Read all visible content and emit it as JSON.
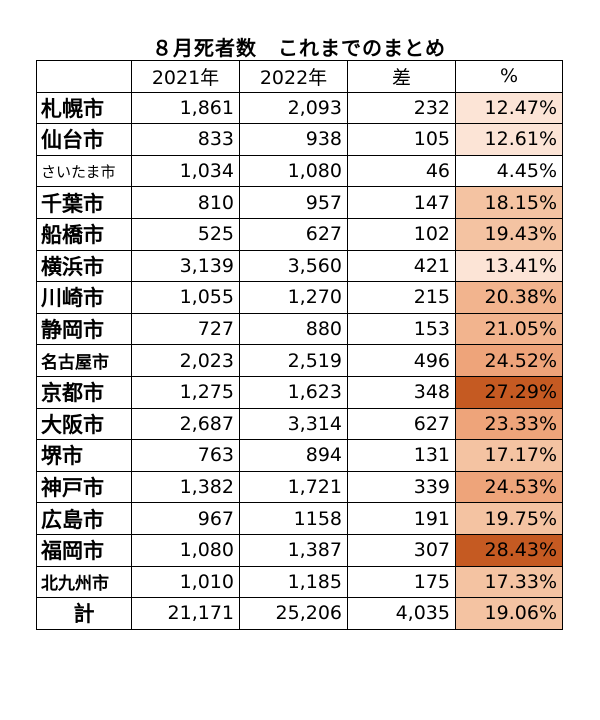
{
  "title": "８月死者数　これまでのまとめ",
  "headers": [
    "",
    "2021年",
    "2022年",
    "差",
    "%"
  ],
  "rows": [
    {
      "city": "札幌市",
      "y2021": "1,861",
      "y2022": "2,093",
      "diff": "232",
      "pct": "12.47%",
      "color": "#fce4d6"
    },
    {
      "city": "仙台市",
      "y2021": "833",
      "y2022": "938",
      "diff": "105",
      "pct": "12.61%",
      "color": "#fce4d6"
    },
    {
      "city": "さいたま市",
      "y2021": "1,034",
      "y2022": "1,080",
      "diff": "46",
      "pct": "4.45%",
      "color": "#ffffff"
    },
    {
      "city": "千葉市",
      "y2021": "810",
      "y2022": "957",
      "diff": "147",
      "pct": "18.15%",
      "color": "#f4c3a2"
    },
    {
      "city": "船橋市",
      "y2021": "525",
      "y2022": "627",
      "diff": "102",
      "pct": "19.43%",
      "color": "#f4c3a2"
    },
    {
      "city": "横浜市",
      "y2021": "3,139",
      "y2022": "3,560",
      "diff": "421",
      "pct": "13.41%",
      "color": "#fce4d6"
    },
    {
      "city": "川崎市",
      "y2021": "1,055",
      "y2022": "1,270",
      "diff": "215",
      "pct": "20.38%",
      "color": "#f2b48e"
    },
    {
      "city": "静岡市",
      "y2021": "727",
      "y2022": "880",
      "diff": "153",
      "pct": "21.05%",
      "color": "#f2b48e"
    },
    {
      "city": "名古屋市",
      "y2021": "2,023",
      "y2022": "2,519",
      "diff": "496",
      "pct": "24.52%",
      "color": "#eea47a"
    },
    {
      "city": "京都市",
      "y2021": "1,275",
      "y2022": "1,623",
      "diff": "348",
      "pct": "27.29%",
      "color": "#c55a22"
    },
    {
      "city": "大阪市",
      "y2021": "2,687",
      "y2022": "3,314",
      "diff": "627",
      "pct": "23.33%",
      "color": "#eea47a"
    },
    {
      "city": "堺市",
      "y2021": "763",
      "y2022": "894",
      "diff": "131",
      "pct": "17.17%",
      "color": "#f4c3a2"
    },
    {
      "city": "神戸市",
      "y2021": "1,382",
      "y2022": "1,721",
      "diff": "339",
      "pct": "24.53%",
      "color": "#eea47a"
    },
    {
      "city": "広島市",
      "y2021": "967",
      "y2022": "1158",
      "diff": "191",
      "pct": "19.75%",
      "color": "#f4c3a2"
    },
    {
      "city": "福岡市",
      "y2021": "1,080",
      "y2022": "1,387",
      "diff": "307",
      "pct": "28.43%",
      "color": "#c55a22"
    },
    {
      "city": "北九州市",
      "y2021": "1,010",
      "y2022": "1,185",
      "diff": "175",
      "pct": "17.33%",
      "color": "#f4c3a2"
    }
  ],
  "total": {
    "label": "計",
    "y2021": "21,171",
    "y2022": "25,206",
    "diff": "4,035",
    "pct": "19.06%",
    "color": "#f4c3a2"
  }
}
